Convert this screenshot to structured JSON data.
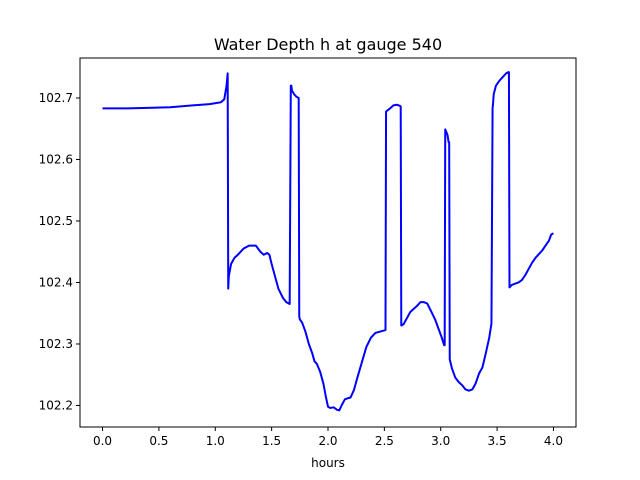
{
  "chart_data": {
    "type": "line",
    "title": "Water Depth h at gauge 540",
    "xlabel": "hours",
    "ylabel": "",
    "xlim": [
      -0.2,
      4.2
    ],
    "ylim": [
      102.165,
      102.765
    ],
    "xticks": [
      0.0,
      0.5,
      1.0,
      1.5,
      2.0,
      2.5,
      3.0,
      3.5,
      4.0
    ],
    "xtick_labels": [
      "0.0",
      "0.5",
      "1.0",
      "1.5",
      "2.0",
      "2.5",
      "3.0",
      "3.5",
      "4.0"
    ],
    "yticks": [
      102.2,
      102.3,
      102.4,
      102.5,
      102.6,
      102.7
    ],
    "ytick_labels": [
      "102.2",
      "102.3",
      "102.4",
      "102.5",
      "102.6",
      "102.7"
    ],
    "grid": false,
    "series": [
      {
        "color": "#0000ff",
        "x": [
          0.0,
          0.2,
          0.4,
          0.6,
          0.8,
          0.95,
          1.05,
          1.08,
          1.1,
          1.11,
          1.115,
          1.12,
          1.14,
          1.17,
          1.2,
          1.25,
          1.3,
          1.36,
          1.4,
          1.43,
          1.46,
          1.48,
          1.5,
          1.53,
          1.56,
          1.6,
          1.63,
          1.66,
          1.67,
          1.675,
          1.68,
          1.7,
          1.72,
          1.74,
          1.745,
          1.75,
          1.77,
          1.8,
          1.83,
          1.86,
          1.88,
          1.9,
          1.93,
          1.96,
          1.98,
          2.0,
          2.02,
          2.05,
          2.08,
          2.1,
          2.12,
          2.15,
          2.18,
          2.2,
          2.23,
          2.26,
          2.3,
          2.34,
          2.38,
          2.42,
          2.46,
          2.5,
          2.51,
          2.515,
          2.55,
          2.58,
          2.61,
          2.64,
          2.645,
          2.65,
          2.67,
          2.7,
          2.73,
          2.76,
          2.79,
          2.82,
          2.85,
          2.88,
          2.91,
          2.95,
          2.98,
          3.01,
          3.03,
          3.035,
          3.04,
          3.06,
          3.07,
          3.075,
          3.08,
          3.1,
          3.13,
          3.16,
          3.19,
          3.22,
          3.25,
          3.28,
          3.31,
          3.34,
          3.37,
          3.4,
          3.43,
          3.45,
          3.46,
          3.465,
          3.47,
          3.49,
          3.52,
          3.55,
          3.58,
          3.6,
          3.605,
          3.61,
          3.63,
          3.66,
          3.69,
          3.72,
          3.75,
          3.78,
          3.81,
          3.84,
          3.87,
          3.9,
          3.93,
          3.96,
          3.98,
          4.0
        ],
        "y": [
          102.683,
          102.683,
          102.684,
          102.685,
          102.688,
          102.69,
          102.693,
          102.698,
          102.72,
          102.74,
          102.39,
          102.41,
          102.43,
          102.44,
          102.445,
          102.455,
          102.46,
          102.46,
          102.45,
          102.445,
          102.448,
          102.445,
          102.43,
          102.41,
          102.39,
          102.375,
          102.368,
          102.365,
          102.72,
          102.72,
          102.712,
          102.706,
          102.702,
          102.7,
          102.345,
          102.34,
          102.335,
          102.32,
          102.3,
          102.285,
          102.272,
          102.268,
          102.255,
          102.235,
          102.215,
          102.198,
          102.196,
          102.197,
          102.193,
          102.192,
          102.2,
          102.21,
          102.212,
          102.213,
          102.225,
          102.245,
          102.27,
          102.295,
          102.31,
          102.318,
          102.32,
          102.322,
          102.323,
          102.678,
          102.683,
          102.688,
          102.689,
          102.687,
          102.686,
          102.33,
          102.332,
          102.342,
          102.352,
          102.357,
          102.362,
          102.368,
          102.368,
          102.366,
          102.355,
          102.34,
          102.325,
          102.31,
          102.298,
          102.298,
          102.649,
          102.64,
          102.628,
          102.628,
          102.275,
          102.26,
          102.245,
          102.238,
          102.233,
          102.226,
          102.224,
          102.226,
          102.236,
          102.252,
          102.262,
          102.285,
          102.31,
          102.333,
          102.683,
          102.693,
          102.706,
          102.72,
          102.728,
          102.734,
          102.74,
          102.742,
          102.742,
          102.392,
          102.396,
          102.398,
          102.4,
          102.404,
          102.412,
          102.422,
          102.432,
          102.44,
          102.446,
          102.452,
          102.46,
          102.468,
          102.478,
          102.48
        ]
      }
    ]
  }
}
